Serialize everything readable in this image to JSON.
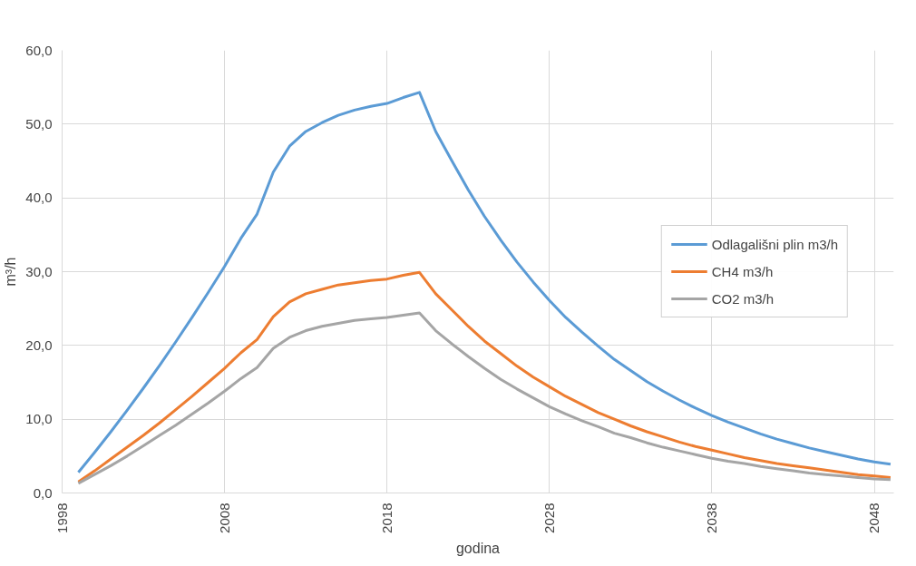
{
  "chart_data": {
    "type": "line",
    "xlabel": "godina",
    "ylabel": "m³/h",
    "x": [
      1999,
      2000,
      2001,
      2002,
      2003,
      2004,
      2005,
      2006,
      2007,
      2008,
      2009,
      2010,
      2011,
      2012,
      2013,
      2014,
      2015,
      2016,
      2017,
      2018,
      2019,
      2020,
      2021,
      2022,
      2023,
      2024,
      2025,
      2026,
      2027,
      2028,
      2029,
      2030,
      2031,
      2032,
      2033,
      2034,
      2035,
      2036,
      2037,
      2038,
      2039,
      2040,
      2041,
      2042,
      2043,
      2044,
      2045,
      2046,
      2047,
      2048,
      2049
    ],
    "series": [
      {
        "name": "Odlagališni plin m3/h",
        "color": "#5b9bd5",
        "values": [
          2.8,
          5.5,
          8.3,
          11.2,
          14.2,
          17.3,
          20.5,
          23.8,
          27.2,
          30.7,
          34.5,
          37.8,
          43.5,
          47.0,
          49.0,
          50.2,
          51.2,
          51.9,
          52.4,
          52.8,
          53.6,
          54.3,
          49.0,
          45.0,
          41.1,
          37.5,
          34.3,
          31.3,
          28.6,
          26.1,
          23.8,
          21.8,
          19.9,
          18.1,
          16.6,
          15.1,
          13.8,
          12.6,
          11.5,
          10.5,
          9.6,
          8.8,
          8.0,
          7.3,
          6.7,
          6.1,
          5.6,
          5.1,
          4.6,
          4.2,
          3.9
        ]
      },
      {
        "name": "CH4 m3/h",
        "color": "#ed7d31",
        "values": [
          1.5,
          3.0,
          4.6,
          6.2,
          7.8,
          9.5,
          11.3,
          13.1,
          15.0,
          16.9,
          19.0,
          20.8,
          23.9,
          25.9,
          27.0,
          27.6,
          28.2,
          28.5,
          28.8,
          29.0,
          29.5,
          29.9,
          27.0,
          24.8,
          22.6,
          20.6,
          18.9,
          17.2,
          15.7,
          14.4,
          13.1,
          12.0,
          10.9,
          10.0,
          9.1,
          8.3,
          7.6,
          6.9,
          6.3,
          5.8,
          5.3,
          4.8,
          4.4,
          4.0,
          3.7,
          3.4,
          3.1,
          2.8,
          2.5,
          2.3,
          2.1
        ]
      },
      {
        "name": "CO2 m3/h",
        "color": "#a5a5a5",
        "values": [
          1.3,
          2.5,
          3.7,
          5.0,
          6.4,
          7.8,
          9.2,
          10.7,
          12.2,
          13.8,
          15.5,
          17.0,
          19.6,
          21.1,
          22.0,
          22.6,
          23.0,
          23.4,
          23.6,
          23.8,
          24.1,
          24.4,
          22.0,
          20.2,
          18.5,
          16.9,
          15.4,
          14.1,
          12.9,
          11.7,
          10.7,
          9.8,
          9.0,
          8.1,
          7.5,
          6.8,
          6.2,
          5.7,
          5.2,
          4.7,
          4.3,
          4.0,
          3.6,
          3.3,
          3.0,
          2.7,
          2.5,
          2.3,
          2.1,
          1.9,
          1.8
        ]
      }
    ],
    "xlim": [
      1998,
      2049.2
    ],
    "xticks": [
      1998,
      2008,
      2018,
      2028,
      2038,
      2048
    ],
    "ylim": [
      0,
      60
    ],
    "yticks": [
      {
        "value": 0,
        "label": "0,0"
      },
      {
        "value": 10,
        "label": "10,0"
      },
      {
        "value": 20,
        "label": "20,0"
      },
      {
        "value": 30,
        "label": "30,0"
      },
      {
        "value": 40,
        "label": "40,0"
      },
      {
        "value": 50,
        "label": "50,0"
      },
      {
        "value": 60,
        "label": "60,0"
      }
    ],
    "grid": true,
    "legend": "right",
    "marker": "none",
    "line_style": "solid"
  }
}
